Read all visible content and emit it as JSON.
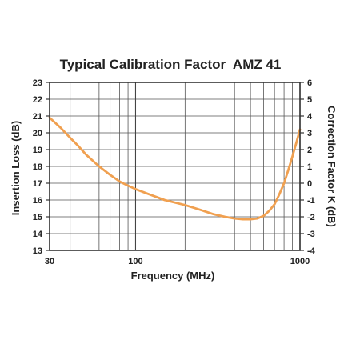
{
  "chart_data": {
    "type": "line",
    "title": "Typical Calibration Factor  AMZ 41",
    "xlabel": "Frequency (MHz)",
    "ylabel": "Insertion Loss (dB)",
    "y2label": "Correction Factor K (dB)",
    "xscale": "log",
    "xlim": [
      30,
      1000
    ],
    "ylim": [
      13,
      23
    ],
    "y2lim": [
      -4,
      6
    ],
    "grid": true,
    "x_ticks": [
      {
        "value": 30,
        "label": "30"
      },
      {
        "value": 100,
        "label": "100"
      },
      {
        "value": 1000,
        "label": "1000"
      }
    ],
    "x_minor_grid": [
      40,
      50,
      60,
      70,
      80,
      90,
      200,
      300,
      400,
      500,
      600,
      700,
      800,
      900
    ],
    "y_ticks": [
      13,
      14,
      15,
      16,
      17,
      18,
      19,
      20,
      21,
      22,
      23
    ],
    "y2_ticks": [
      -4,
      -3,
      -2,
      -1,
      0,
      1,
      2,
      3,
      4,
      5,
      6
    ],
    "series": [
      {
        "color": "#f0a050",
        "x": [
          30,
          35,
          40,
          45,
          50,
          60,
          70,
          80,
          90,
          100,
          120,
          150,
          200,
          250,
          300,
          350,
          400,
          450,
          500,
          550,
          600,
          650,
          700,
          750,
          800,
          850,
          900,
          950,
          1000
        ],
        "y": [
          20.9,
          20.3,
          19.7,
          19.2,
          18.7,
          18.0,
          17.5,
          17.1,
          16.85,
          16.65,
          16.35,
          16.0,
          15.7,
          15.4,
          15.15,
          15.0,
          14.9,
          14.85,
          14.85,
          14.9,
          15.05,
          15.35,
          15.75,
          16.35,
          17.0,
          17.8,
          18.6,
          19.4,
          20.2
        ]
      }
    ]
  }
}
